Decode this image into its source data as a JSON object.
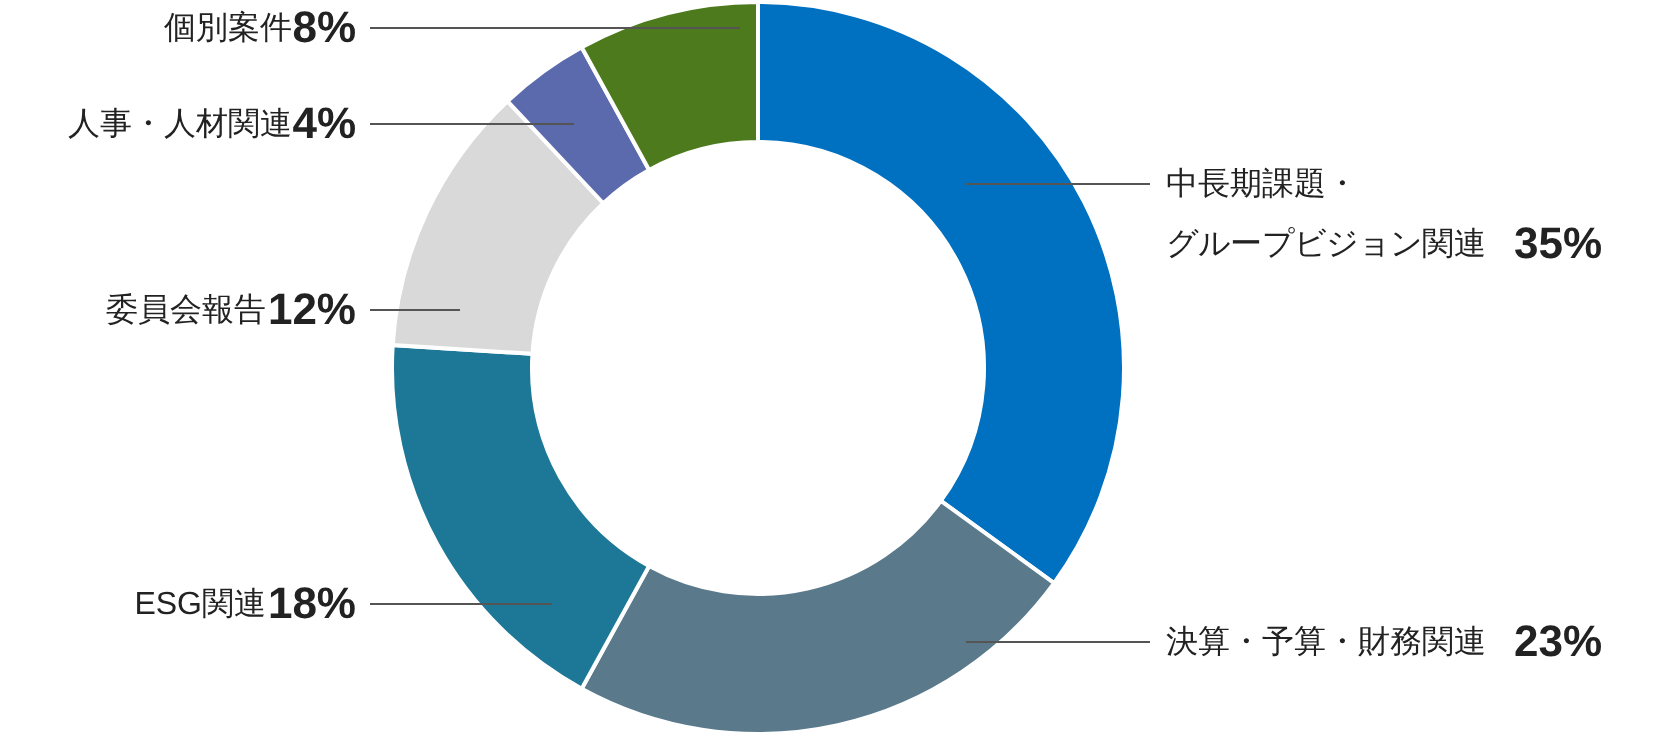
{
  "chart_data": {
    "type": "donut",
    "categories": [
      "中長期課題・グループビジョン関連",
      "決算・予算・財務関連",
      "ESG関連",
      "委員会報告",
      "人事・人材関連",
      "個別案件"
    ],
    "values": [
      35,
      23,
      18,
      12,
      4,
      8
    ],
    "colors": [
      "#0070c0",
      "#5a7a8c",
      "#1c7896",
      "#d9d9d9",
      "#5b6aad",
      "#4e7a1e"
    ],
    "value_labels": [
      "35%",
      "23%",
      "18%",
      "12%",
      "4%",
      "8%"
    ]
  }
}
